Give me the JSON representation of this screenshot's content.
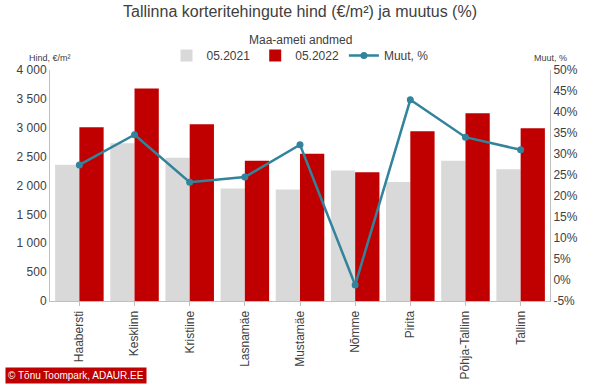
{
  "chart_data": {
    "type": "bar",
    "title": "Tallinna korteritehingute hind (€/m²) ja muutus (%)",
    "subtitle": "Maa-ameti andmed",
    "ylabel": "Hind, €/m²",
    "y2label": "Muut, %",
    "categories": [
      "Haabersti",
      "Kesklinn",
      "Kristiine",
      "Lasnamäe",
      "Mustamäe",
      "Nõmme",
      "Pirita",
      "Põhja-Tallinn",
      "Tallinn"
    ],
    "series": [
      {
        "name": "05.2021",
        "type": "bar",
        "color": "#d9d9d9",
        "values": [
          2360,
          2730,
          2480,
          1950,
          1930,
          2260,
          2060,
          2430,
          2280
        ]
      },
      {
        "name": "05.2022",
        "type": "bar",
        "color": "#c00000",
        "values": [
          3010,
          3680,
          3060,
          2430,
          2550,
          2230,
          2940,
          3250,
          2990
        ]
      },
      {
        "name": "Muut, %",
        "type": "line",
        "axis": "y2",
        "marker": "circle",
        "color": "#31849b",
        "values": [
          27.4,
          34.6,
          23.3,
          24.5,
          32.2,
          -1.2,
          42.9,
          34.0,
          31.0
        ]
      }
    ],
    "ylim": [
      0,
      4000
    ],
    "yticks": [
      0,
      500,
      {
        "value": 1000,
        "label": "1 000"
      },
      {
        "value": 1500,
        "label": "1 500"
      },
      {
        "value": 2000,
        "label": "2 000"
      },
      {
        "value": 2500,
        "label": "2 500"
      },
      {
        "value": 3000,
        "label": "3 000"
      },
      {
        "value": 3500,
        "label": "3 500"
      },
      {
        "value": 4000,
        "label": "4 000"
      }
    ],
    "y2lim": [
      -5,
      50
    ],
    "y2ticks": [
      {
        "value": -5,
        "label": "-5%"
      },
      {
        "value": 0,
        "label": "0%"
      },
      {
        "value": 5,
        "label": "5%"
      },
      {
        "value": 10,
        "label": "10%"
      },
      {
        "value": 15,
        "label": "15%"
      },
      {
        "value": 20,
        "label": "20%"
      },
      {
        "value": 25,
        "label": "25%"
      },
      {
        "value": 30,
        "label": "30%"
      },
      {
        "value": 35,
        "label": "35%"
      },
      {
        "value": 40,
        "label": "40%"
      },
      {
        "value": 45,
        "label": "45%"
      },
      {
        "value": 50,
        "label": "50%"
      }
    ],
    "grid": false,
    "legend": "top",
    "annotations": [
      {
        "text": "© Tõnu Toompark, ADAUR.EE"
      }
    ]
  }
}
